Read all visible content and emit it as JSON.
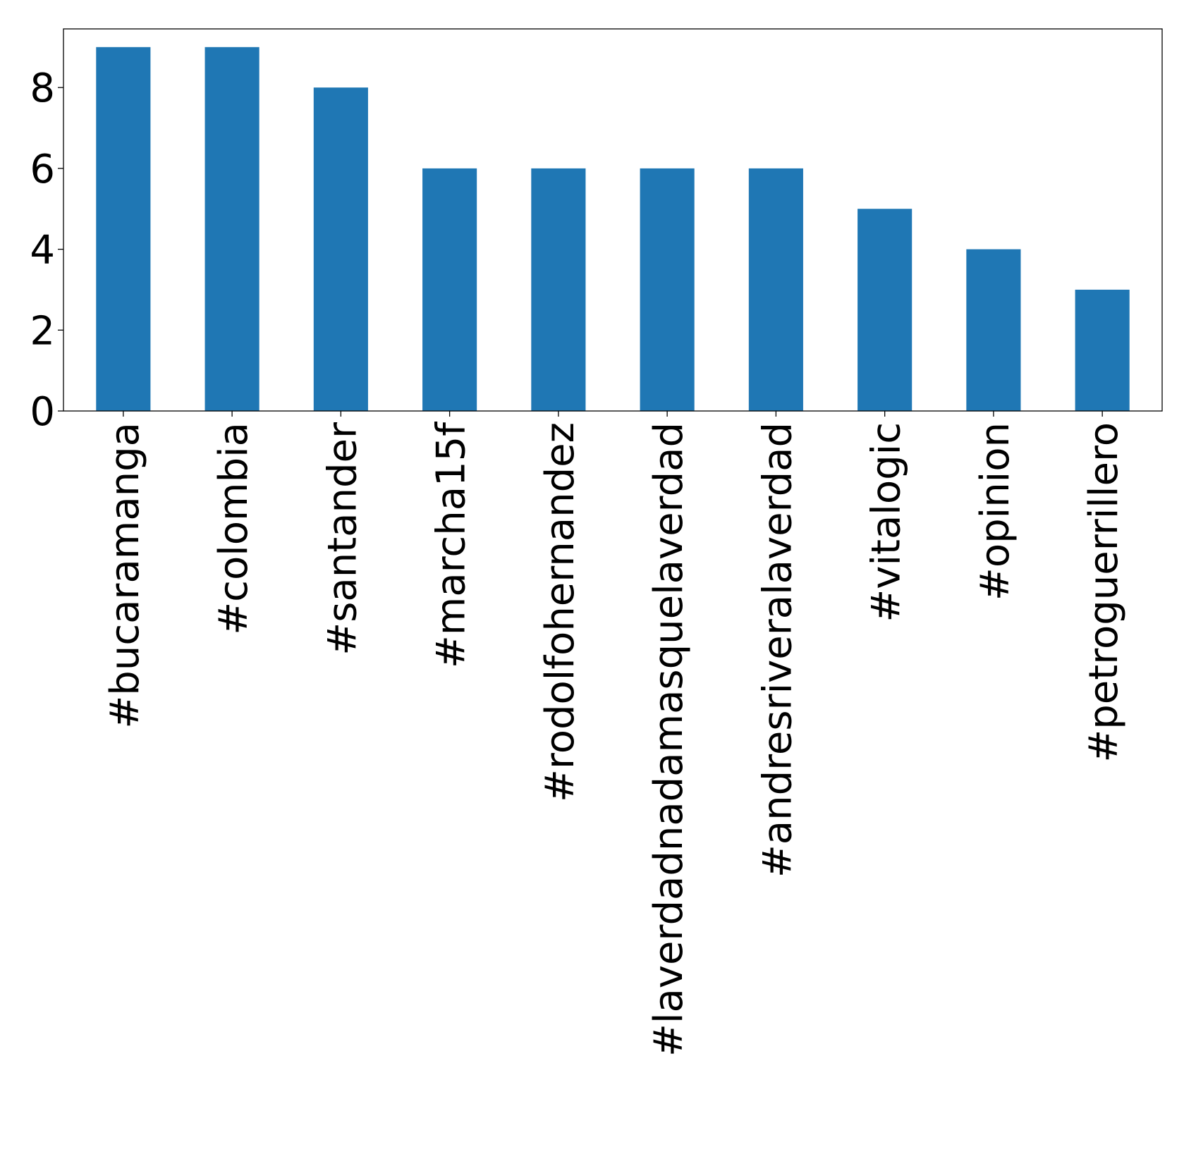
{
  "chart_data": {
    "type": "bar",
    "categories": [
      "#bucaramanga",
      "#colombia",
      "#santander",
      "#marcha15f",
      "#rodolfohernandez",
      "#laverdadnadamasquelaverdad",
      "#andresriveralaverdad",
      "#vitalogic",
      "#opinion",
      "#petroguerrillero"
    ],
    "values": [
      9,
      9,
      8,
      6,
      6,
      6,
      6,
      5,
      4,
      3
    ],
    "yticks": [
      "0",
      "2",
      "4",
      "6",
      "8"
    ],
    "ylim": [
      0,
      9.45
    ],
    "bar_color": "#1f77b4",
    "grid": false,
    "legend": "none"
  }
}
